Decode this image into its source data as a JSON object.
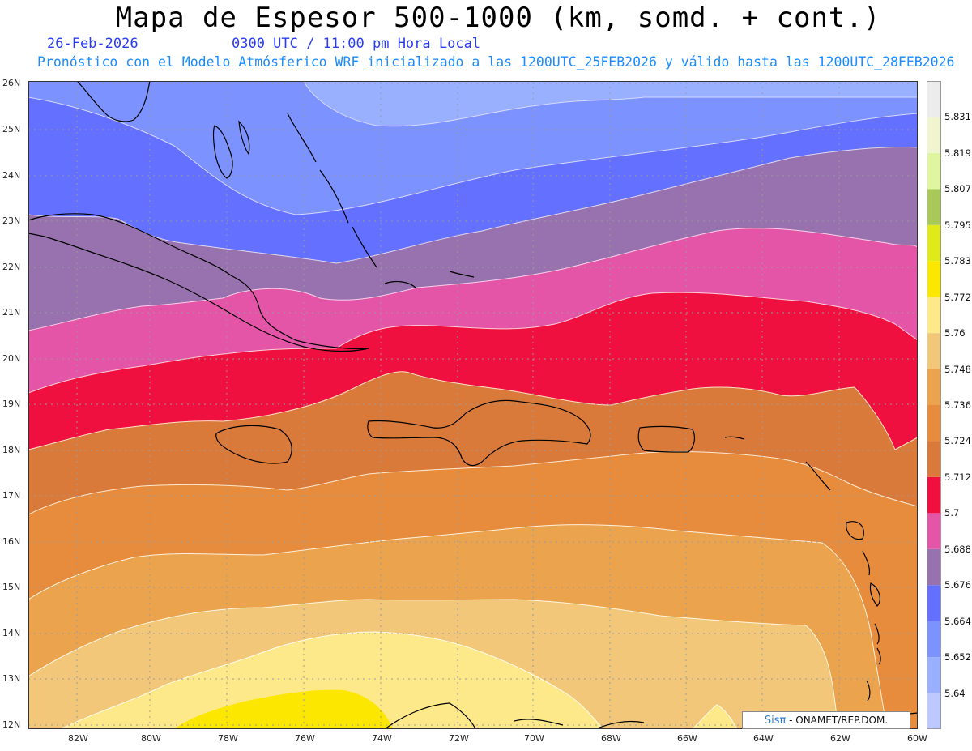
{
  "header": {
    "title": "Mapa de Espesor 500-1000 (km, somd. + cont.)",
    "date": "26-Feb-2026",
    "time": "0300 UTC / 11:00 pm Hora Local",
    "subtitle": "Pronóstico con el Modelo Atmósferico WRF inicializado a las 1200UTC_25FEB2026 y válido hasta las  1200UTC_28FEB2026"
  },
  "map": {
    "lat_labels": [
      "26N",
      "25N",
      "24N",
      "23N",
      "22N",
      "21N",
      "20N",
      "19N",
      "18N",
      "17N",
      "16N",
      "15N",
      "14N",
      "13N",
      "12N"
    ],
    "lon_labels": [
      "82W",
      "80W",
      "78W",
      "76W",
      "74W",
      "72W",
      "70W",
      "68W",
      "66W",
      "64W",
      "62W",
      "60W"
    ]
  },
  "colorbar": {
    "labels": [
      "5.831",
      "5.819",
      "5.807",
      "5.795",
      "5.783",
      "5.772",
      "5.76",
      "5.748",
      "5.736",
      "5.724",
      "5.712",
      "5.7",
      "5.688",
      "5.676",
      "5.664",
      "5.652",
      "5.64"
    ],
    "colors": [
      "#bcc8ff",
      "#98b0ff",
      "#7c92ff",
      "#6470ff",
      "#9872ae",
      "#e455a8",
      "#f0103f",
      "#d97a3a",
      "#e68c3c",
      "#eba44d",
      "#f2c77a",
      "#fde98a",
      "#fbe700",
      "#e0ea1a",
      "#a8c85a",
      "#e0f5a0",
      "#f0f5d0",
      "#ececec"
    ],
    "colors_order": "bottom-to-top"
  },
  "credit": {
    "brand": "Sisπ",
    "text": " - ONAMET/REP.DOM."
  }
}
